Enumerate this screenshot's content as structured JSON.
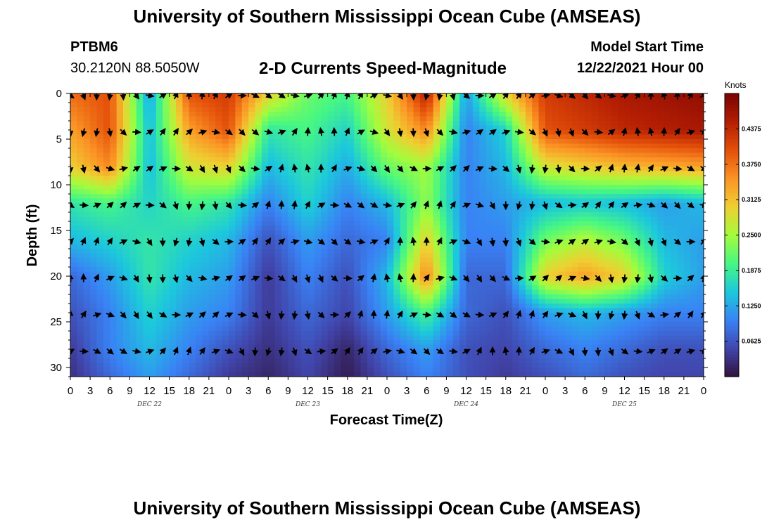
{
  "header": {
    "title": "University of Southern Mississippi Ocean Cube (AMSEAS)",
    "station": "PTBM6",
    "coordinates": "30.2120N  88.5050W",
    "subtitle": "2-D Currents Speed-Magnitude",
    "model_start_label": "Model Start Time",
    "model_start_value": "12/22/2021 Hour 00"
  },
  "footer": {
    "title": "University of Southern Mississippi Ocean Cube (AMSEAS)"
  },
  "chart_data": {
    "type": "heatmap",
    "title": "2-D Currents Speed-Magnitude",
    "xlabel": "Forecast Time(Z)",
    "ylabel": "Depth (ft)",
    "x_ticks": [
      "0",
      "3",
      "6",
      "9",
      "12",
      "15",
      "18",
      "21",
      "0",
      "3",
      "6",
      "9",
      "12",
      "15",
      "18",
      "21",
      "0",
      "3",
      "6",
      "9",
      "12",
      "15",
      "18",
      "21",
      "0",
      "3",
      "6",
      "9",
      "12",
      "15",
      "18",
      "21",
      "0"
    ],
    "day_labels": [
      "DEC 22",
      "DEC 23",
      "DEC 24",
      "DEC 25"
    ],
    "y_ticks": [
      0,
      5,
      10,
      15,
      20,
      25,
      30
    ],
    "ylim": [
      0,
      31
    ],
    "xlim_hours": [
      0,
      96
    ],
    "colorbar": {
      "label": "Knots",
      "range": [
        0,
        0.5
      ],
      "ticks": [
        "0.4375",
        "0.3750",
        "0.3125",
        "0.2500",
        "0.1875",
        "0.1250",
        "0.0625"
      ]
    },
    "times_hours": [
      0,
      6,
      12,
      18,
      24,
      30,
      36,
      42,
      48,
      54,
      60,
      66,
      72,
      78,
      84,
      90,
      96
    ],
    "depths_ft": [
      0,
      4,
      8,
      12,
      16,
      20,
      24,
      28,
      31
    ],
    "speed_knots": [
      [
        0.38,
        0.4,
        0.12,
        0.4,
        0.42,
        0.3,
        0.22,
        0.2,
        0.3,
        0.45,
        0.12,
        0.3,
        0.42,
        0.44,
        0.46,
        0.47,
        0.48
      ],
      [
        0.34,
        0.4,
        0.14,
        0.34,
        0.4,
        0.18,
        0.2,
        0.16,
        0.28,
        0.36,
        0.1,
        0.16,
        0.4,
        0.42,
        0.44,
        0.45,
        0.46
      ],
      [
        0.3,
        0.36,
        0.14,
        0.28,
        0.3,
        0.14,
        0.18,
        0.13,
        0.22,
        0.25,
        0.1,
        0.14,
        0.28,
        0.3,
        0.32,
        0.33,
        0.34
      ],
      [
        0.18,
        0.2,
        0.16,
        0.2,
        0.18,
        0.1,
        0.16,
        0.1,
        0.14,
        0.24,
        0.1,
        0.12,
        0.14,
        0.15,
        0.14,
        0.12,
        0.14
      ],
      [
        0.14,
        0.16,
        0.18,
        0.16,
        0.14,
        0.06,
        0.12,
        0.08,
        0.1,
        0.3,
        0.1,
        0.1,
        0.22,
        0.26,
        0.22,
        0.14,
        0.12
      ],
      [
        0.08,
        0.12,
        0.18,
        0.14,
        0.12,
        0.04,
        0.1,
        0.06,
        0.14,
        0.36,
        0.08,
        0.08,
        0.3,
        0.34,
        0.3,
        0.16,
        0.12
      ],
      [
        0.06,
        0.1,
        0.16,
        0.12,
        0.1,
        0.04,
        0.08,
        0.05,
        0.12,
        0.2,
        0.08,
        0.06,
        0.12,
        0.14,
        0.12,
        0.1,
        0.1
      ],
      [
        0.04,
        0.1,
        0.14,
        0.1,
        0.06,
        0.03,
        0.06,
        0.02,
        0.08,
        0.12,
        0.06,
        0.05,
        0.08,
        0.1,
        0.08,
        0.06,
        0.06
      ],
      [
        0.03,
        0.08,
        0.12,
        0.08,
        0.04,
        0.02,
        0.05,
        0.01,
        0.06,
        0.1,
        0.06,
        0.04,
        0.06,
        0.08,
        0.06,
        0.05,
        0.05
      ]
    ],
    "arrow_depths_ft": [
      0,
      4,
      8,
      12,
      16,
      20,
      24,
      28
    ],
    "arrow_times_hours": [
      0,
      2,
      4,
      6,
      8,
      10,
      12,
      14,
      16,
      18,
      20,
      22,
      24,
      26,
      28,
      30,
      32,
      34,
      36,
      38,
      40,
      42,
      44,
      46,
      48,
      50,
      52,
      54,
      56,
      58,
      60,
      62,
      64,
      66,
      68,
      70,
      72,
      74,
      76,
      78,
      80,
      82,
      84,
      86,
      88,
      90,
      92,
      94,
      96
    ]
  }
}
